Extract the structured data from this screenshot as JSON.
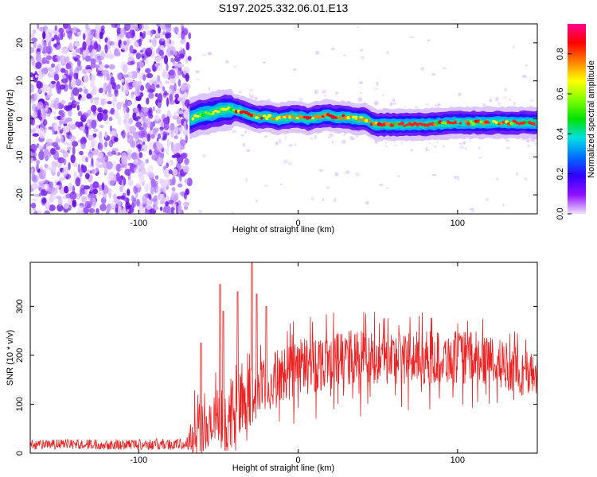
{
  "title": "S197.2025.332.06.01.E13",
  "chart_data": [
    {
      "type": "heatmap",
      "name": "spectrogram",
      "xlabel": "Height of straight line (km)",
      "ylabel": "Frequency (Hz)",
      "xlim": [
        -168,
        150
      ],
      "ylim": [
        -25,
        25
      ],
      "x_ticks": [
        -100,
        0,
        100
      ],
      "y_ticks": [
        20,
        10,
        0,
        -10,
        -20
      ],
      "noise_region_end_km": -68,
      "signal_start_km": -68,
      "signal_ridge": {
        "x": [
          -68,
          -62,
          -55,
          -48,
          -42,
          -36,
          -30,
          -24,
          -18,
          -12,
          -6,
          0,
          6,
          12,
          18,
          24,
          30,
          36,
          42,
          48,
          60,
          80,
          100,
          120,
          150
        ],
        "y": [
          0.0,
          1.0,
          1.5,
          2.2,
          2.5,
          2.0,
          1.0,
          0.5,
          0.5,
          0.0,
          0.5,
          0.5,
          0.0,
          0.5,
          1.0,
          0.5,
          0.5,
          0.0,
          0.0,
          -1.5,
          -1.5,
          -1.5,
          -1.0,
          -1.0,
          -1.0
        ]
      },
      "colorbar": {
        "label": "Normalized spectral amplitude",
        "ticks": [
          "0.0",
          "0.2",
          "0.4",
          "0.6",
          "0.8"
        ],
        "range": [
          0,
          0.95
        ],
        "colors": [
          "#f0e0ff",
          "#9010ff",
          "#3000ff",
          "#0070ff",
          "#00e0e0",
          "#00e000",
          "#80ff00",
          "#ffff00",
          "#ff8000",
          "#ff0000",
          "#ff0090"
        ]
      }
    },
    {
      "type": "line",
      "name": "snr",
      "xlabel": "Height of straight line (km)",
      "ylabel": "SNR (10 * v/v)",
      "xlim": [
        -168,
        150
      ],
      "ylim": [
        0,
        390
      ],
      "x_ticks": [
        -100,
        0,
        100
      ],
      "y_ticks": [
        0,
        100,
        200,
        300
      ],
      "color": "#ee2222",
      "envelope": {
        "x": [
          -168,
          -70,
          -62,
          -58,
          -52,
          -48,
          -44,
          -40,
          -34,
          -30,
          -26,
          -20,
          -10,
          0,
          20,
          40,
          60,
          80,
          100,
          110,
          120,
          130,
          140,
          150
        ],
        "base": [
          18,
          18,
          60,
          40,
          60,
          70,
          60,
          90,
          110,
          110,
          120,
          135,
          160,
          175,
          190,
          195,
          195,
          195,
          195,
          195,
          190,
          180,
          165,
          160
        ],
        "amp": [
          10,
          12,
          80,
          40,
          70,
          60,
          60,
          70,
          60,
          70,
          60,
          60,
          60,
          60,
          60,
          60,
          55,
          55,
          55,
          55,
          50,
          50,
          50,
          45
        ]
      },
      "peaks": [
        {
          "x": -61,
          "y": 225
        },
        {
          "x": -49,
          "y": 345
        },
        {
          "x": -47,
          "y": 290
        },
        {
          "x": -38,
          "y": 330
        },
        {
          "x": -29,
          "y": 390
        },
        {
          "x": -26,
          "y": 325
        },
        {
          "x": -20,
          "y": 300
        }
      ]
    }
  ]
}
